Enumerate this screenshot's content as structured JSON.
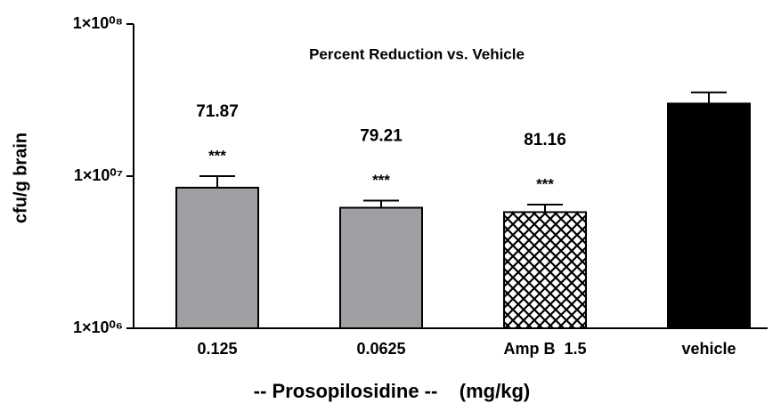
{
  "chart_data": {
    "type": "bar",
    "title": "Percent Reduction vs. Vehicle",
    "xlabel": "-- Prosopilosidine --    (mg/kg)",
    "ylabel": "cfu/g brain",
    "categories": [
      "0.125",
      "0.0625",
      "Amp B  1.5",
      "vehicle"
    ],
    "values": [
      8400000,
      6200000,
      5800000,
      30000000
    ],
    "errors": [
      1600000,
      700000,
      700000,
      5500000
    ],
    "colors": [
      "#a0a0a4",
      "#a0a0a4",
      "#ffffff",
      "#000000"
    ],
    "hatch": [
      false,
      false,
      true,
      false
    ],
    "reduction": [
      71.87,
      79.21,
      81.16,
      null
    ],
    "significance": [
      "***",
      "***",
      "***",
      null
    ],
    "log_scale": true,
    "ylim": [
      1000000,
      100000000
    ],
    "yticks": [
      {
        "value": 1000000,
        "label": "1×10⁰⁶"
      },
      {
        "value": 10000000,
        "label": "1×10⁰⁷"
      },
      {
        "value": 100000000,
        "label": "1×10⁰⁸"
      }
    ]
  }
}
